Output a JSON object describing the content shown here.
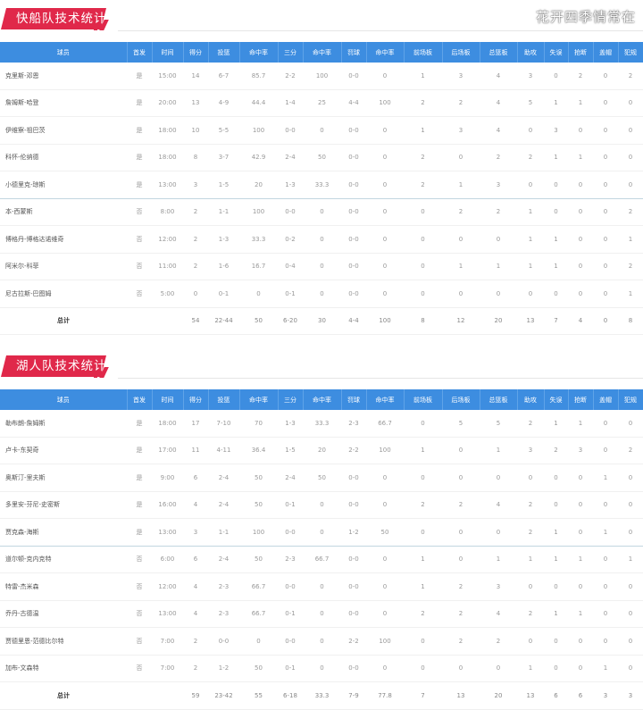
{
  "columns": [
    "球员",
    "首发",
    "时间",
    "得分",
    "投篮",
    "命中率",
    "三分",
    "命中率",
    "罚球",
    "命中率",
    "前场板",
    "后场板",
    "总篮板",
    "助攻",
    "失误",
    "抢断",
    "盖帽",
    "犯规"
  ],
  "teams": [
    {
      "title": "快船队技术统计",
      "starters_count": 5,
      "rows": [
        [
          "克里斯-邓恩",
          "是",
          "15:00",
          "14",
          "6-7",
          "85.7",
          "2-2",
          "100",
          "0-0",
          "0",
          "1",
          "3",
          "4",
          "3",
          "0",
          "2",
          "0",
          "2"
        ],
        [
          "詹姆斯-哈登",
          "是",
          "20:00",
          "13",
          "4-9",
          "44.4",
          "1-4",
          "25",
          "4-4",
          "100",
          "2",
          "2",
          "4",
          "5",
          "1",
          "1",
          "0",
          "0"
        ],
        [
          "伊维察-祖巴茨",
          "是",
          "18:00",
          "10",
          "5-5",
          "100",
          "0-0",
          "0",
          "0-0",
          "0",
          "1",
          "3",
          "4",
          "0",
          "3",
          "0",
          "0",
          "0"
        ],
        [
          "科怀-伦纳德",
          "是",
          "18:00",
          "8",
          "3-7",
          "42.9",
          "2-4",
          "50",
          "0-0",
          "0",
          "2",
          "0",
          "2",
          "2",
          "1",
          "1",
          "0",
          "0"
        ],
        [
          "小德里克-琼斯",
          "是",
          "13:00",
          "3",
          "1-5",
          "20",
          "1-3",
          "33.3",
          "0-0",
          "0",
          "2",
          "1",
          "3",
          "0",
          "0",
          "0",
          "0",
          "0"
        ],
        [
          "本-西蒙斯",
          "否",
          "8:00",
          "2",
          "1-1",
          "100",
          "0-0",
          "0",
          "0-0",
          "0",
          "0",
          "2",
          "2",
          "1",
          "0",
          "0",
          "0",
          "2"
        ],
        [
          "博格丹-博格达诺维奇",
          "否",
          "12:00",
          "2",
          "1-3",
          "33.3",
          "0-2",
          "0",
          "0-0",
          "0",
          "0",
          "0",
          "0",
          "1",
          "1",
          "0",
          "0",
          "1"
        ],
        [
          "阿米尔-科菲",
          "否",
          "11:00",
          "2",
          "1-6",
          "16.7",
          "0-4",
          "0",
          "0-0",
          "0",
          "0",
          "1",
          "1",
          "1",
          "1",
          "0",
          "0",
          "2"
        ],
        [
          "尼古拉斯-巴图姆",
          "否",
          "5:00",
          "0",
          "0-1",
          "0",
          "0-1",
          "0",
          "0-0",
          "0",
          "0",
          "0",
          "0",
          "0",
          "0",
          "0",
          "0",
          "1"
        ]
      ],
      "total": [
        "总计",
        "",
        "",
        "54",
        "22-44",
        "50",
        "6-20",
        "30",
        "4-4",
        "100",
        "8",
        "12",
        "20",
        "13",
        "7",
        "4",
        "0",
        "8"
      ]
    },
    {
      "title": "湖人队技术统计",
      "starters_count": 5,
      "rows": [
        [
          "勒布朗-詹姆斯",
          "是",
          "18:00",
          "17",
          "7-10",
          "70",
          "1-3",
          "33.3",
          "2-3",
          "66.7",
          "0",
          "5",
          "5",
          "2",
          "1",
          "1",
          "0",
          "0"
        ],
        [
          "卢卡-东契奇",
          "是",
          "17:00",
          "11",
          "4-11",
          "36.4",
          "1-5",
          "20",
          "2-2",
          "100",
          "1",
          "0",
          "1",
          "3",
          "2",
          "3",
          "0",
          "2"
        ],
        [
          "奥斯汀-里夫斯",
          "是",
          "9:00",
          "6",
          "2-4",
          "50",
          "2-4",
          "50",
          "0-0",
          "0",
          "0",
          "0",
          "0",
          "0",
          "0",
          "0",
          "1",
          "0"
        ],
        [
          "多里安-芬尼-史密斯",
          "是",
          "16:00",
          "4",
          "2-4",
          "50",
          "0-1",
          "0",
          "0-0",
          "0",
          "2",
          "2",
          "4",
          "2",
          "0",
          "0",
          "0",
          "0"
        ],
        [
          "贾克森-海斯",
          "是",
          "13:00",
          "3",
          "1-1",
          "100",
          "0-0",
          "0",
          "1-2",
          "50",
          "0",
          "0",
          "0",
          "2",
          "1",
          "0",
          "1",
          "0"
        ],
        [
          "道尔顿-克内克特",
          "否",
          "6:00",
          "6",
          "2-4",
          "50",
          "2-3",
          "66.7",
          "0-0",
          "0",
          "1",
          "0",
          "1",
          "1",
          "1",
          "1",
          "0",
          "1"
        ],
        [
          "特雷-杰米森",
          "否",
          "12:00",
          "4",
          "2-3",
          "66.7",
          "0-0",
          "0",
          "0-0",
          "0",
          "1",
          "2",
          "3",
          "0",
          "0",
          "0",
          "0",
          "0"
        ],
        [
          "乔丹-古德温",
          "否",
          "13:00",
          "4",
          "2-3",
          "66.7",
          "0-1",
          "0",
          "0-0",
          "0",
          "2",
          "2",
          "4",
          "2",
          "1",
          "1",
          "0",
          "0"
        ],
        [
          "贾德里恩-范德比尔特",
          "否",
          "7:00",
          "2",
          "0-0",
          "0",
          "0-0",
          "0",
          "2-2",
          "100",
          "0",
          "2",
          "2",
          "0",
          "0",
          "0",
          "0",
          "0"
        ],
        [
          "加布-文森特",
          "否",
          "7:00",
          "2",
          "1-2",
          "50",
          "0-1",
          "0",
          "0-0",
          "0",
          "0",
          "0",
          "0",
          "1",
          "0",
          "0",
          "1",
          "0"
        ]
      ],
      "total": [
        "总计",
        "",
        "",
        "59",
        "23-42",
        "55",
        "6-18",
        "33.3",
        "7-9",
        "77.8",
        "7",
        "13",
        "20",
        "13",
        "6",
        "6",
        "3",
        "3"
      ]
    }
  ],
  "watermark": "花开四季情常在",
  "colors": {
    "banner": "#e0284a",
    "header": "#3d8de0"
  }
}
